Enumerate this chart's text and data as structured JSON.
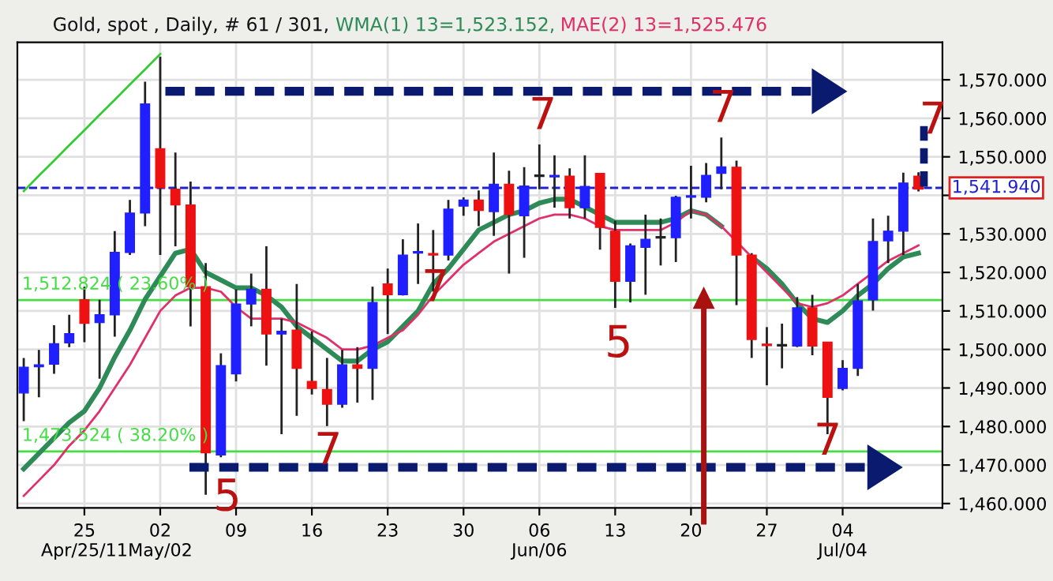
{
  "chart_data": {
    "type": "candlestick",
    "title": "Gold, spot , Daily, # 61 / 301,",
    "categories": [
      null,
      null,
      null,
      null,
      "25\nApr/25/11",
      null,
      null,
      null,
      null,
      "02\nMay/02",
      null,
      null,
      null,
      null,
      "09",
      null,
      null,
      null,
      null,
      "16",
      null,
      null,
      null,
      null,
      "23",
      null,
      null,
      null,
      null,
      "30",
      null,
      null,
      null,
      null,
      "06\nJun/06",
      null,
      null,
      null,
      null,
      "13",
      null,
      null,
      null,
      null,
      "20",
      null,
      null,
      null,
      null,
      "27",
      null,
      null,
      null,
      null,
      "04\nJul/04",
      null,
      null,
      null,
      null,
      null
    ],
    "ohlc": [
      [
        1488.7,
        1497.8,
        1481.4,
        1495.4
      ],
      [
        1495.5,
        1499.9,
        1487.6,
        1496
      ],
      [
        1496.2,
        1506.3,
        1493.7,
        1501.5
      ],
      [
        1501.7,
        1509,
        1500.6,
        1504.1
      ],
      [
        1512.9,
        1516.3,
        1501.9,
        1506.8
      ],
      [
        1507,
        1512.9,
        1492.4,
        1509
      ],
      [
        1509,
        1530.7,
        1503.3,
        1525.2
      ],
      [
        1525.2,
        1538.8,
        1524.5,
        1535.4
      ],
      [
        1535.4,
        1569.5,
        1532,
        1563.7
      ],
      [
        1552.1,
        1576,
        1524.5,
        1542
      ],
      [
        1541.6,
        1551.1,
        1526.8,
        1537.5
      ],
      [
        1537.5,
        1543.6,
        1506,
        1516.3
      ],
      [
        1516.3,
        1522.4,
        1462.3,
        1473.2
      ],
      [
        1472.6,
        1499,
        1472,
        1495.8
      ],
      [
        1493.7,
        1515.6,
        1491.7,
        1511.8
      ],
      [
        1511.8,
        1519.7,
        1506,
        1515.6
      ],
      [
        1515.6,
        1526.8,
        1495.8,
        1504
      ],
      [
        1504,
        1508,
        1478,
        1504.7
      ],
      [
        1505,
        1517,
        1482.8,
        1495.1
      ],
      [
        1491.7,
        1504.7,
        1488.3,
        1489.9
      ],
      [
        1489.6,
        1497.8,
        1480.1,
        1485.8
      ],
      [
        1485.8,
        1499.9,
        1484.9,
        1496
      ],
      [
        1496,
        1500.6,
        1486.2,
        1495.1
      ],
      [
        1495.1,
        1516.3,
        1486.9,
        1512.2
      ],
      [
        1517,
        1521,
        1504,
        1514.2
      ],
      [
        1514.2,
        1528.6,
        1514,
        1524.5
      ],
      [
        1525,
        1532.7,
        1517,
        1525.2
      ],
      [
        1524.8,
        1531,
        1515,
        1524.5
      ],
      [
        1524.5,
        1538.8,
        1523.1,
        1536.4
      ],
      [
        1537.2,
        1539.5,
        1534.7,
        1538.8
      ],
      [
        1538.8,
        1541.3,
        1532,
        1536.1
      ],
      [
        1535.8,
        1551.1,
        1529.5,
        1542.9
      ],
      [
        1542.9,
        1546.4,
        1519.7,
        1535
      ],
      [
        1534.7,
        1547.3,
        1523.8,
        1542.4
      ],
      [
        1544.9,
        1553.2,
        1541.6,
        1545
      ],
      [
        1544.8,
        1550.4,
        1536.8,
        1545.2
      ],
      [
        1545,
        1547,
        1534,
        1536.8
      ],
      [
        1536.8,
        1550.4,
        1534,
        1542.3
      ],
      [
        1545.7,
        1545.7,
        1525.9,
        1531.7
      ],
      [
        1530.7,
        1533.4,
        1510.8,
        1517.7
      ],
      [
        1517.7,
        1527.5,
        1512.2,
        1526.9
      ],
      [
        1526.5,
        1535,
        1514.2,
        1528.6
      ],
      [
        1528.9,
        1534,
        1521.8,
        1529
      ],
      [
        1529,
        1539.9,
        1522.7,
        1539.5
      ],
      [
        1539.5,
        1547.7,
        1534,
        1539.7
      ],
      [
        1539.5,
        1548.4,
        1538.2,
        1545.2
      ],
      [
        1545.7,
        1555,
        1541.6,
        1547.4
      ],
      [
        1547.3,
        1549,
        1511.5,
        1524.5
      ],
      [
        1524.5,
        1525,
        1497.8,
        1502.6
      ],
      [
        1501.2,
        1505.8,
        1490.7,
        1501
      ],
      [
        1500.9,
        1506.7,
        1495.1,
        1501
      ],
      [
        1500.9,
        1513.6,
        1500.6,
        1510.8
      ],
      [
        1510.8,
        1514.2,
        1498.5,
        1500.9
      ],
      [
        1501.9,
        1501.9,
        1478,
        1487.6
      ],
      [
        1489.9,
        1497.2,
        1489.4,
        1495.1
      ],
      [
        1495.1,
        1517,
        1493.1,
        1512.6
      ],
      [
        1512.9,
        1534,
        1510.1,
        1528
      ],
      [
        1528.2,
        1534.7,
        1522.4,
        1530.7
      ],
      [
        1530.7,
        1545.9,
        1524.5,
        1543.2
      ],
      [
        1545,
        1546,
        1541,
        1541.6
      ]
    ],
    "colors": [
      "#1f1fff",
      "#1f1fff",
      "#1f1fff",
      "#1f1fff",
      "#ee1111",
      "#1f1fff",
      "#1f1fff",
      "#1f1fff",
      "#1f1fff",
      "#ee1111",
      "#ee1111",
      "#ee1111",
      "#ee1111",
      "#1f1fff",
      "#1f1fff",
      "#1f1fff",
      "#ee1111",
      "#1f1fff",
      "#ee1111",
      "#ee1111",
      "#ee1111",
      "#1f1fff",
      "#ee1111",
      "#1f1fff",
      "#ee1111",
      "#1f1fff",
      "#1f1fff",
      "#ee1111",
      "#1f1fff",
      "#1f1fff",
      "#ee1111",
      "#1f1fff",
      "#ee1111",
      "#1f1fff",
      "#222222",
      "#1f1fff",
      "#ee1111",
      "#1f1fff",
      "#ee1111",
      "#ee1111",
      "#1f1fff",
      "#1f1fff",
      "#222222",
      "#1f1fff",
      "#1f1fff",
      "#1f1fff",
      "#1f1fff",
      "#ee1111",
      "#ee1111",
      "#ee1111",
      "#222222",
      "#1f1fff",
      "#ee1111",
      "#ee1111",
      "#1f1fff",
      "#1f1fff",
      "#1f1fff",
      "#1f1fff",
      "#1f1fff",
      "#ee1111"
    ],
    "series": [
      {
        "type": "line",
        "name": "WMA(1) 13=1,523.152,",
        "color": "#2e8b57",
        "values": [
          1469,
          1473,
          1477,
          1481,
          1484,
          1490,
          1498,
          1505,
          1513,
          1519,
          1525,
          1526,
          1520,
          1518,
          1516,
          1516,
          1514,
          1511,
          1506,
          1503,
          1500,
          1497,
          1497,
          1500,
          1502,
          1506,
          1510,
          1517,
          1521,
          1526,
          1531,
          1533,
          1535,
          1536,
          1538,
          1539,
          1539,
          1537,
          1535,
          1533,
          1533,
          1533,
          1533,
          1534,
          1536,
          1535,
          1532,
          null,
          1524,
          1521,
          1517,
          1512,
          1508,
          1507,
          1510,
          1514,
          1517,
          1521,
          1524,
          1525
        ]
      },
      {
        "type": "line",
        "name": "MAE(2) 13=1,525.476",
        "color": "#e0306a",
        "values": [
          1462,
          1466,
          1470,
          1475,
          1479,
          1484,
          1490,
          1496,
          1503,
          1510,
          1514,
          1516,
          1516,
          1515,
          1511,
          1508,
          1508,
          1508,
          1507,
          1505,
          1503,
          1500,
          1500,
          1501,
          1503,
          1505,
          1509,
          1514,
          1518,
          1522,
          1525,
          1528,
          1530,
          1532,
          1534,
          1535,
          1535,
          1534,
          1532,
          1531,
          1531,
          1531,
          1531,
          1533,
          1536,
          1535,
          1532,
          1528,
          1524,
          1520,
          1516,
          1512,
          1511,
          1512,
          1514,
          1517,
          1520,
          1523,
          1525,
          1527
        ]
      },
      {
        "type": "line",
        "color": "#33cc33",
        "values": [
          1541.1,
          1545.1,
          1549,
          1553,
          1556.9,
          1560.9,
          1564.8,
          1568.8,
          1572.7,
          1576.7,
          null,
          null,
          null,
          null,
          null,
          null,
          null,
          null,
          null,
          null,
          null,
          null,
          null,
          null,
          null,
          null,
          null,
          null,
          null,
          null,
          null,
          null,
          null,
          null,
          null,
          null,
          null,
          null,
          null,
          null,
          null,
          null,
          null,
          null,
          null,
          null,
          null,
          null,
          null,
          null,
          null,
          null,
          null,
          null,
          null,
          null,
          null,
          null,
          null,
          null
        ]
      }
    ],
    "ref_lines": [
      {
        "axis": "y",
        "value": 1512.824,
        "label": "1,512.824 ( 23.60% )",
        "color": "#44dd44"
      },
      {
        "axis": "y",
        "value": 1473.524,
        "label": "1,473.524 ( 38.20% )",
        "color": "#44dd44"
      },
      {
        "axis": "y",
        "value": 1541.94,
        "label": "1,541.940",
        "color": "#2222cc",
        "line_style": "dashed"
      }
    ],
    "annotations": [
      "7",
      "7",
      "7",
      "7",
      "5",
      "7",
      "5",
      "7"
    ],
    "ylim": [
      1458.9,
      1579.7
    ],
    "yticks": [
      {
        "value": 1460,
        "label": "1,460.000"
      },
      {
        "value": 1470,
        "label": "1,470.000"
      },
      {
        "value": 1480,
        "label": "1,480.000"
      },
      {
        "value": 1490,
        "label": "1,490.000"
      },
      {
        "value": 1500,
        "label": "1,500.000"
      },
      {
        "value": 1510,
        "label": "1,510.000"
      },
      {
        "value": 1520,
        "label": "1,520.000"
      },
      {
        "value": 1530,
        "label": "1,530.000"
      },
      {
        "value": 1540,
        "label": null
      },
      {
        "value": 1550,
        "label": "1,550.000"
      },
      {
        "value": 1560,
        "label": "1,560.000"
      },
      {
        "value": 1570,
        "label": "1,570.000"
      }
    ],
    "grid": true,
    "legend": "top",
    "marker": "none"
  }
}
